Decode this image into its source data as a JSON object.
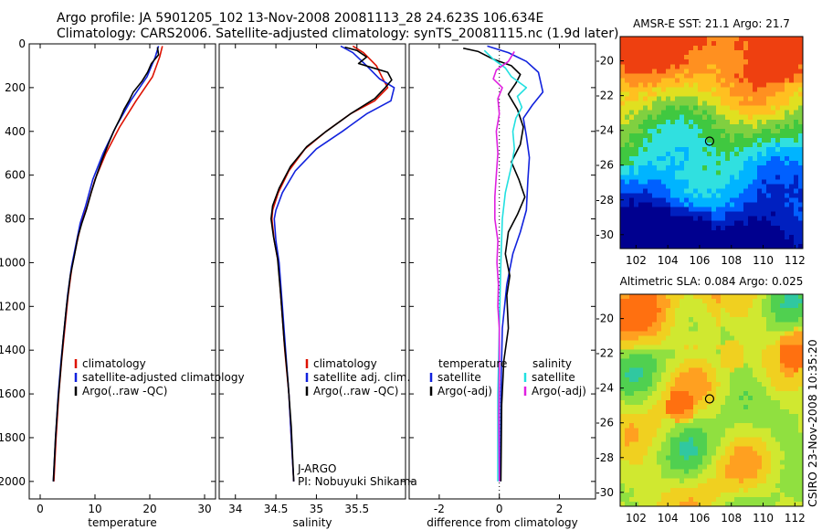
{
  "header": {
    "line1": "Argo profile: JA 5901205_102 13-Nov-2008 20081113_28 24.623S 106.634E",
    "line2": "Climatology: CARS2006. Satellite-adjusted climatology: synTS_20081115.nc (1.9d later)"
  },
  "side_label": "CSIRO 23-Nov-2008 10:35:20",
  "colors": {
    "red": "#dd1100",
    "blue": "#1122dd",
    "black": "#000000",
    "cyan": "#22e0e0",
    "magenta": "#e020e0"
  },
  "chart_data": [
    {
      "type": "line",
      "name": "temperature-profile",
      "xlabel": "temperature",
      "xlim": [
        -2,
        32
      ],
      "ylim": [
        0,
        2080
      ],
      "xticks": [
        0,
        10,
        20,
        30
      ],
      "yticks": [
        0,
        200,
        400,
        600,
        800,
        1000,
        1200,
        1400,
        1600,
        1800,
        2000
      ],
      "legend": [
        {
          "label": "climatology",
          "color": "#dd1100"
        },
        {
          "label": "satellite-adjusted climatology",
          "color": "#1122dd"
        },
        {
          "label": "Argo(..raw -QC)",
          "color": "#000000"
        }
      ],
      "series": [
        {
          "color": "#dd1100",
          "points": [
            [
              22.3,
              10
            ],
            [
              21.8,
              60
            ],
            [
              20.5,
              150
            ],
            [
              17.5,
              260
            ],
            [
              14.5,
              380
            ],
            [
              12.0,
              500
            ],
            [
              10.0,
              620
            ],
            [
              8.6,
              740
            ],
            [
              7.5,
              820
            ],
            [
              6.6,
              920
            ],
            [
              5.8,
              1020
            ],
            [
              5.1,
              1150
            ],
            [
              4.5,
              1300
            ],
            [
              3.9,
              1450
            ],
            [
              3.4,
              1600
            ],
            [
              2.9,
              1800
            ],
            [
              2.5,
              2000
            ]
          ]
        },
        {
          "color": "#1122dd",
          "points": [
            [
              21.6,
              10
            ],
            [
              21.0,
              60
            ],
            [
              19.5,
              150
            ],
            [
              16.5,
              260
            ],
            [
              13.8,
              380
            ],
            [
              11.5,
              500
            ],
            [
              9.6,
              620
            ],
            [
              8.3,
              740
            ],
            [
              7.3,
              820
            ],
            [
              6.5,
              920
            ],
            [
              5.7,
              1020
            ],
            [
              5.0,
              1150
            ],
            [
              4.4,
              1300
            ],
            [
              3.8,
              1450
            ],
            [
              3.3,
              1600
            ],
            [
              2.8,
              1800
            ],
            [
              2.4,
              2000
            ]
          ]
        },
        {
          "color": "#000000",
          "points": [
            [
              21.4,
              15
            ],
            [
              21.6,
              50
            ],
            [
              20.3,
              90
            ],
            [
              19.6,
              130
            ],
            [
              18.6,
              170
            ],
            [
              17.0,
              220
            ],
            [
              16.2,
              260
            ],
            [
              15.3,
              300
            ],
            [
              14.6,
              340
            ],
            [
              13.4,
              400
            ],
            [
              12.4,
              460
            ],
            [
              11.3,
              530
            ],
            [
              10.3,
              600
            ],
            [
              9.3,
              680
            ],
            [
              8.4,
              760
            ],
            [
              7.6,
              820
            ],
            [
              6.9,
              880
            ],
            [
              6.3,
              960
            ],
            [
              5.5,
              1060
            ],
            [
              4.8,
              1200
            ],
            [
              4.2,
              1350
            ],
            [
              3.7,
              1500
            ],
            [
              3.2,
              1650
            ],
            [
              2.8,
              1800
            ],
            [
              2.4,
              2000
            ]
          ]
        }
      ]
    },
    {
      "type": "line",
      "name": "salinity-profile",
      "xlabel": "salinity",
      "xlim": [
        33.8,
        36.1
      ],
      "ylim": [
        0,
        2080
      ],
      "xticks": [
        34,
        34.5,
        35,
        35.5
      ],
      "legend": [
        {
          "label": "climatology",
          "color": "#dd1100"
        },
        {
          "label": "satellite adj. clim.",
          "color": "#1122dd"
        },
        {
          "label": "Argo(..raw -QC)",
          "color": "#000000"
        }
      ],
      "annotation": [
        "J-ARGO",
        "PI: Nobuyuki Shikama"
      ],
      "series": [
        {
          "color": "#dd1100",
          "points": [
            [
              35.45,
              10
            ],
            [
              35.58,
              40
            ],
            [
              35.74,
              100
            ],
            [
              35.82,
              160
            ],
            [
              35.88,
              200
            ],
            [
              35.72,
              260
            ],
            [
              35.42,
              320
            ],
            [
              35.12,
              400
            ],
            [
              34.86,
              480
            ],
            [
              34.66,
              580
            ],
            [
              34.53,
              680
            ],
            [
              34.46,
              760
            ],
            [
              34.45,
              800
            ],
            [
              34.48,
              900
            ],
            [
              34.53,
              1000
            ],
            [
              34.57,
              1200
            ],
            [
              34.61,
              1400
            ],
            [
              34.66,
              1600
            ],
            [
              34.69,
              1800
            ],
            [
              34.72,
              2000
            ]
          ]
        },
        {
          "color": "#1122dd",
          "points": [
            [
              35.3,
              10
            ],
            [
              35.45,
              40
            ],
            [
              35.62,
              100
            ],
            [
              35.78,
              160
            ],
            [
              35.96,
              200
            ],
            [
              35.92,
              260
            ],
            [
              35.62,
              320
            ],
            [
              35.32,
              400
            ],
            [
              35.0,
              480
            ],
            [
              34.74,
              580
            ],
            [
              34.58,
              680
            ],
            [
              34.5,
              760
            ],
            [
              34.48,
              800
            ],
            [
              34.5,
              900
            ],
            [
              34.54,
              1000
            ],
            [
              34.58,
              1200
            ],
            [
              34.62,
              1400
            ],
            [
              34.66,
              1600
            ],
            [
              34.69,
              1800
            ],
            [
              34.72,
              2000
            ]
          ]
        },
        {
          "color": "#000000",
          "points": [
            [
              35.35,
              15
            ],
            [
              35.5,
              30
            ],
            [
              35.62,
              60
            ],
            [
              35.52,
              90
            ],
            [
              35.7,
              110
            ],
            [
              35.88,
              130
            ],
            [
              35.93,
              165
            ],
            [
              35.85,
              200
            ],
            [
              35.72,
              250
            ],
            [
              35.42,
              320
            ],
            [
              35.12,
              400
            ],
            [
              34.88,
              470
            ],
            [
              34.68,
              560
            ],
            [
              34.54,
              660
            ],
            [
              34.46,
              740
            ],
            [
              34.44,
              800
            ],
            [
              34.47,
              880
            ],
            [
              34.52,
              980
            ],
            [
              34.56,
              1150
            ],
            [
              34.6,
              1350
            ],
            [
              34.65,
              1550
            ],
            [
              34.69,
              1750
            ],
            [
              34.72,
              2000
            ]
          ]
        }
      ]
    },
    {
      "type": "line",
      "name": "difference-profile",
      "xlabel": "difference from climatology",
      "xlim": [
        -3,
        3.2
      ],
      "ylim": [
        0,
        2080
      ],
      "xticks": [
        -2,
        0,
        2
      ],
      "legend": [
        {
          "label": "temperature",
          "color": ""
        },
        {
          "label": "satellite",
          "color": "#1122dd"
        },
        {
          "label": "Argo(-adj)",
          "color": "#000000"
        },
        {
          "label": "salinity",
          "color": ""
        },
        {
          "label": "satellite",
          "color": "#22e0e0"
        },
        {
          "label": "Argo(-adj)",
          "color": "#e020e0"
        }
      ],
      "series": [
        {
          "color": "#1122dd",
          "points": [
            [
              -0.4,
              10
            ],
            [
              0.3,
              40
            ],
            [
              0.9,
              80
            ],
            [
              1.3,
              130
            ],
            [
              1.45,
              220
            ],
            [
              1.1,
              280
            ],
            [
              0.8,
              340
            ],
            [
              0.9,
              420
            ],
            [
              1.0,
              520
            ],
            [
              0.95,
              620
            ],
            [
              0.9,
              760
            ],
            [
              0.7,
              860
            ],
            [
              0.45,
              960
            ],
            [
              0.25,
              1100
            ],
            [
              0.1,
              1300
            ],
            [
              0.05,
              1600
            ],
            [
              0.03,
              2000
            ]
          ]
        },
        {
          "color": "#000000",
          "points": [
            [
              -1.2,
              20
            ],
            [
              -0.7,
              35
            ],
            [
              -0.2,
              70
            ],
            [
              0.4,
              100
            ],
            [
              0.7,
              140
            ],
            [
              0.55,
              180
            ],
            [
              0.3,
              230
            ],
            [
              0.6,
              300
            ],
            [
              0.8,
              380
            ],
            [
              0.7,
              460
            ],
            [
              0.4,
              540
            ],
            [
              0.65,
              620
            ],
            [
              0.85,
              700
            ],
            [
              0.6,
              780
            ],
            [
              0.3,
              860
            ],
            [
              0.2,
              960
            ],
            [
              0.35,
              1060
            ],
            [
              0.25,
              1150
            ],
            [
              0.3,
              1300
            ],
            [
              0.15,
              1450
            ],
            [
              0.08,
              1650
            ],
            [
              0.05,
              2000
            ]
          ]
        },
        {
          "color": "#22e0e0",
          "points": [
            [
              -0.5,
              30
            ],
            [
              -0.2,
              70
            ],
            [
              0.2,
              110
            ],
            [
              0.4,
              150
            ],
            [
              0.9,
              200
            ],
            [
              0.6,
              240
            ],
            [
              0.75,
              290
            ],
            [
              0.55,
              340
            ],
            [
              0.45,
              400
            ],
            [
              0.5,
              480
            ],
            [
              0.4,
              560
            ],
            [
              0.2,
              680
            ],
            [
              0.1,
              800
            ],
            [
              0.05,
              1000
            ],
            [
              0.0,
              1300
            ],
            [
              -0.05,
              1600
            ],
            [
              -0.05,
              2000
            ]
          ]
        },
        {
          "color": "#e020e0",
          "points": [
            [
              0.5,
              35
            ],
            [
              0.3,
              80
            ],
            [
              -0.1,
              120
            ],
            [
              -0.2,
              160
            ],
            [
              0.1,
              200
            ],
            [
              -0.05,
              250
            ],
            [
              0.0,
              320
            ],
            [
              -0.1,
              400
            ],
            [
              -0.05,
              500
            ],
            [
              -0.1,
              600
            ],
            [
              -0.15,
              700
            ],
            [
              -0.15,
              800
            ],
            [
              -0.05,
              900
            ],
            [
              -0.08,
              1000
            ],
            [
              -0.03,
              1100
            ],
            [
              -0.05,
              1200
            ],
            [
              0.0,
              1300
            ],
            [
              0.0,
              1500
            ],
            [
              -0.02,
              1700
            ],
            [
              0.0,
              2000
            ]
          ]
        }
      ]
    },
    {
      "type": "heatmap",
      "name": "sst-map",
      "title": "AMSR-E SST: 21.1 Argo: 21.7",
      "xlim": [
        101,
        112.5
      ],
      "ylim": [
        -30.8,
        -18.6
      ],
      "xticks": [
        102,
        104,
        106,
        108,
        110,
        112
      ],
      "yticks": [
        -20,
        -22,
        -24,
        -26,
        -28,
        -30
      ],
      "marker": [
        106.63,
        -24.62
      ],
      "palette": [
        "#00008f",
        "#0020c0",
        "#0060ff",
        "#00b4ff",
        "#30e0e0",
        "#40c840",
        "#80d040",
        "#e0e020",
        "#ffc020",
        "#ff9020",
        "#ee4010"
      ]
    },
    {
      "type": "heatmap",
      "name": "sla-map",
      "title": "Altimetric SLA: 0.084 Argo: 0.025",
      "xlim": [
        101,
        112.5
      ],
      "ylim": [
        -30.8,
        -18.6
      ],
      "xticks": [
        102,
        104,
        106,
        108,
        110,
        112
      ],
      "yticks": [
        -20,
        -22,
        -24,
        -26,
        -28,
        -30
      ],
      "marker": [
        106.63,
        -24.62
      ],
      "palette": [
        "#00b4c0",
        "#30c8a0",
        "#50d050",
        "#90e040",
        "#d0e830",
        "#f0d020",
        "#ffa020",
        "#ff7010"
      ]
    }
  ]
}
